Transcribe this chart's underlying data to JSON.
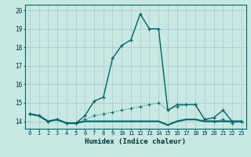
{
  "xlabel": "Humidex (Indice chaleur)",
  "ylabel": "",
  "xlim": [
    -0.5,
    23.5
  ],
  "ylim": [
    13.6,
    20.3
  ],
  "yticks": [
    14,
    15,
    16,
    17,
    18,
    19,
    20
  ],
  "xticks": [
    0,
    1,
    2,
    3,
    4,
    5,
    6,
    7,
    8,
    9,
    10,
    11,
    12,
    13,
    14,
    15,
    16,
    17,
    18,
    19,
    20,
    21,
    22,
    23
  ],
  "background_color": "#c8e8e4",
  "grid_color": "#b0ccca",
  "line_color": "#006666",
  "series1_x": [
    0,
    1,
    2,
    3,
    4,
    5,
    6,
    7,
    8,
    9,
    10,
    11,
    12,
    13,
    14,
    15,
    16,
    17,
    18,
    19,
    20,
    21,
    22,
    23
  ],
  "series1_y": [
    14.4,
    14.3,
    14.0,
    14.1,
    13.9,
    13.9,
    14.3,
    15.1,
    15.3,
    17.4,
    18.1,
    18.4,
    19.8,
    19.0,
    19.0,
    14.6,
    14.9,
    14.9,
    14.9,
    14.1,
    14.2,
    14.6,
    14.0,
    14.0
  ],
  "series2_x": [
    0,
    1,
    2,
    3,
    4,
    5,
    6,
    7,
    8,
    9,
    10,
    11,
    12,
    13,
    14,
    15,
    16,
    17,
    18,
    19,
    20,
    21,
    22,
    23
  ],
  "series2_y": [
    14.4,
    14.3,
    14.0,
    14.1,
    13.9,
    13.9,
    14.1,
    14.3,
    14.4,
    14.5,
    14.6,
    14.7,
    14.8,
    14.9,
    15.0,
    14.6,
    14.8,
    14.9,
    14.9,
    14.1,
    14.0,
    14.1,
    13.9,
    14.0
  ],
  "series3_x": [
    0,
    1,
    2,
    3,
    4,
    5,
    6,
    7,
    8,
    9,
    10,
    11,
    12,
    13,
    14,
    15,
    16,
    17,
    18,
    19,
    20,
    21,
    22,
    23
  ],
  "series3_y": [
    14.4,
    14.3,
    14.0,
    14.1,
    13.9,
    13.9,
    14.0,
    14.0,
    14.0,
    14.0,
    14.0,
    14.0,
    14.0,
    14.0,
    14.0,
    13.8,
    14.0,
    14.1,
    14.1,
    14.0,
    14.0,
    14.0,
    14.0,
    14.0
  ]
}
